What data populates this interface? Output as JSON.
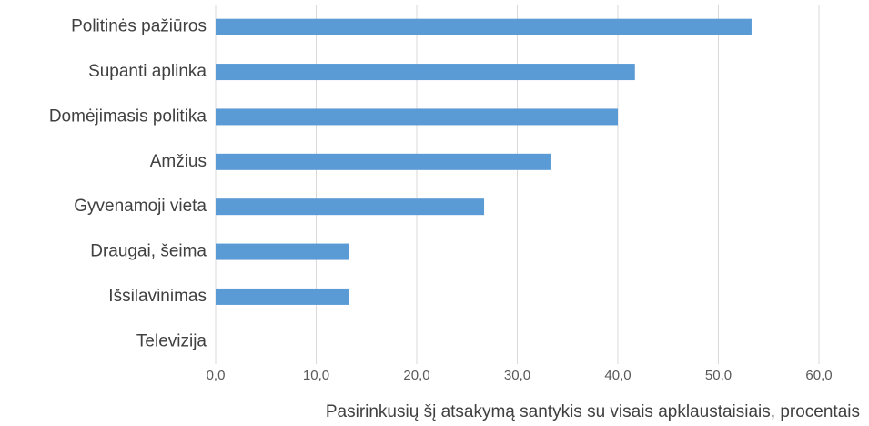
{
  "chart_data": {
    "type": "bar",
    "orientation": "horizontal",
    "categories": [
      "Politinės pažiūros",
      "Supanti aplinka",
      "Domėjimasis politika",
      "Amžius",
      "Gyvenamoji vieta",
      "Draugai, šeima",
      "Išsilavinimas",
      "Televizija"
    ],
    "values": [
      53.3,
      41.7,
      40.0,
      33.3,
      26.7,
      13.3,
      13.3,
      0
    ],
    "color": "#5b9bd5",
    "xlim": [
      0,
      60
    ],
    "xticks": [
      {
        "value": 0,
        "label": "0,0"
      },
      {
        "value": 10,
        "label": "10,0"
      },
      {
        "value": 20,
        "label": "20,0"
      },
      {
        "value": 30,
        "label": "30,0"
      },
      {
        "value": 40,
        "label": "40,0"
      },
      {
        "value": 50,
        "label": "50,0"
      },
      {
        "value": 60,
        "label": "60,0"
      }
    ],
    "xlabel": "Pasirinkusių šį atsakymą santykis su visais apklaustaisiais, procentais",
    "grid": true
  }
}
